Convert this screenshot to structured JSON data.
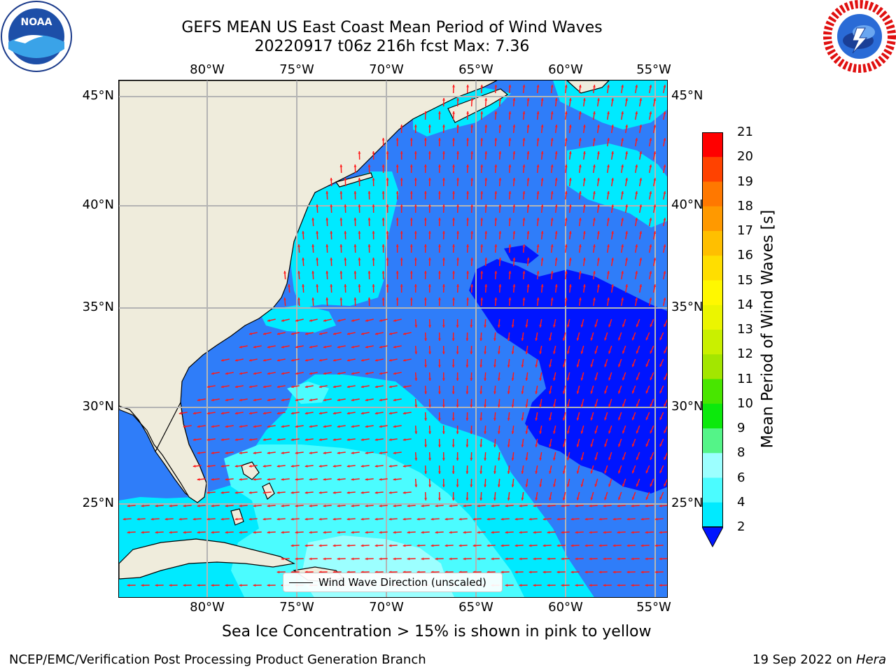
{
  "header": {
    "title_line1": "GEFS MEAN US East Coast Mean Period of Wind Waves",
    "title_line2": "20220917 t06z 216h fcst   Max: 7.36"
  },
  "logos": {
    "left": "noaa-logo",
    "right": "nws-logo"
  },
  "map": {
    "lon_ticks_top": [
      "80°W",
      "75°W",
      "70°W",
      "65°W",
      "60°W",
      "55°W"
    ],
    "lon_ticks_bottom": [
      "80°W",
      "75°W",
      "70°W",
      "65°W",
      "60°W",
      "55°W"
    ],
    "lat_ticks_left": [
      "45°N",
      "40°N",
      "35°N",
      "30°N",
      "25°N"
    ],
    "lat_ticks_right": [
      "45°N",
      "40°N",
      "35°N",
      "30°N",
      "25°N"
    ],
    "legend_label": "Wind Wave Direction (unscaled)",
    "vector_color": "#ff1a1a",
    "land_color": "#efecdc",
    "grid_color": "#b4b4b4"
  },
  "colorbar": {
    "title": "Mean Period of Wind Waves [s]",
    "ticks": [
      "2",
      "4",
      "6",
      "8",
      "9",
      "10",
      "11",
      "12",
      "13",
      "14",
      "15",
      "16",
      "17",
      "18",
      "19",
      "20",
      "21"
    ],
    "colors": [
      "#2f7df9",
      "#00eaff",
      "#4bfcff",
      "#9cffff",
      "#54f488",
      "#0ce90c",
      "#48e600",
      "#a3e600",
      "#c9f000",
      "#ebf500",
      "#fff800",
      "#ffde00",
      "#ffbf00",
      "#ff9900",
      "#ff7800",
      "#ff4200",
      "#ff0000"
    ],
    "extend_min_color": "#0015ff"
  },
  "footer": {
    "note": "Sea Ice Concentration > 15% is shown in pink to yellow",
    "left": "NCEP/EMC/Verification Post Processing Product Generation Branch",
    "date": "19 Sep 2022 on ",
    "machine": "Hera"
  }
}
